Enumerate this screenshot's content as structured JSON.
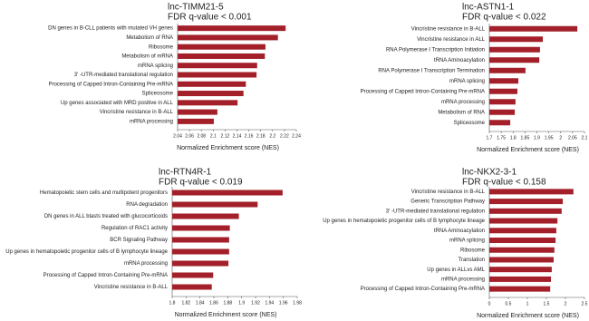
{
  "chart_data": [
    {
      "type": "bar",
      "orientation": "horizontal",
      "title": "lnc-TIMM21-5",
      "subtitle": "FDR q-value < 0.001",
      "xlabel": "Normalized Enrichment score (NES)",
      "color": "#a3202a",
      "categories": [
        "DN genes in B-CLL patients with mutated VH genes",
        "Metabolism of RNA",
        "Ribosome",
        "Metabolism of mRNA",
        "mRNA splicing",
        "3' -UTR-mediated translational regulation",
        "Processing of Capped Intron-Containing Pre-mRNA",
        "Spliceosome",
        "Up genes associated with MRD positive in ALL",
        "Vincristine resistance in B-ALL",
        "mRNA processing"
      ],
      "category_colors": [
        "#222222",
        "#222222",
        "#222222",
        "#222222",
        "#222222",
        "#222222",
        "#a3202a",
        "#222222",
        "#222222",
        "#a3202a",
        "#a3202a"
      ],
      "values": [
        2.222,
        2.209,
        2.188,
        2.187,
        2.174,
        2.173,
        2.155,
        2.151,
        2.141,
        2.107,
        2.101
      ],
      "xlim": [
        2.04,
        2.24
      ],
      "xticks": [
        2.04,
        2.06,
        2.08,
        2.1,
        2.12,
        2.14,
        2.16,
        2.18,
        2.2,
        2.22,
        2.24
      ]
    },
    {
      "type": "bar",
      "orientation": "horizontal",
      "title": "lnc-ASTN1-1",
      "subtitle": "FDR q-value < 0.022",
      "xlabel": "Normalized Enrichment score (NES)",
      "color": "#a3202a",
      "categories": [
        "Vincristine resistance in B-ALL",
        "Vincristine resistance in ALL",
        "RNA Polymerase I Transcription Initiation",
        "tRNA Aminoacylation",
        "RNA Polymerase I Transcription Termination",
        "mRNA splicing",
        "Processing of Capped Intron-Containing Pre-mRNA",
        "mRNA processing",
        "Metabolism of RNA",
        "Spliceosome"
      ],
      "category_colors": [
        "#a3202a",
        "#222222",
        "#222222",
        "#222222",
        "#222222",
        "#222222",
        "#a3202a",
        "#a3202a",
        "#222222",
        "#222222"
      ],
      "values": [
        2.07,
        1.925,
        1.913,
        1.91,
        1.852,
        1.822,
        1.818,
        1.81,
        1.807,
        1.788
      ],
      "xlim": [
        1.7,
        2.1
      ],
      "xticks": [
        1.7,
        1.75,
        1.8,
        1.85,
        1.9,
        1.95,
        2,
        2.05,
        2.1
      ]
    },
    {
      "type": "bar",
      "orientation": "horizontal",
      "title": "lnc-RTN4R-1",
      "subtitle": "FDR q-value < 0.019",
      "xlabel": "Normalized Enrichment score (NES)",
      "color": "#a3202a",
      "categories": [
        "Hematopoietic stem cells  and multipotent progenitors",
        "RNA degradation",
        "DN genes in ALL  blasts treated with glucocorticoids",
        "Regulation of RAC1 activity",
        "BCR Signaling Pathway",
        "Up genes in hematopoietic progenitor cells of B lymphocyte lineage",
        "mRNA processing",
        "Processing of Capped Intron-Containing Pre-mRNA",
        "Vincristine resistance in B-ALL"
      ],
      "category_colors": [
        "#222222",
        "#222222",
        "#222222",
        "#222222",
        "#222222",
        "#222222",
        "#a3202a",
        "#a3202a",
        "#a3202a"
      ],
      "values": [
        1.959,
        1.923,
        1.896,
        1.883,
        1.882,
        1.882,
        1.881,
        1.859,
        1.857
      ],
      "xlim": [
        1.8,
        1.98
      ],
      "xticks": [
        1.8,
        1.82,
        1.84,
        1.86,
        1.88,
        1.9,
        1.92,
        1.94,
        1.96,
        1.98
      ]
    },
    {
      "type": "bar",
      "orientation": "horizontal",
      "title": "lnc-NKX2-3-1",
      "subtitle": "FDR q-value < 0.158",
      "xlabel": "Normalized Enrichment score (NES)",
      "color": "#a3202a",
      "categories": [
        "Vincristine resistance in B-ALL",
        "Generic Transcription Pathway",
        "3' -UTR-mediated translational regulation",
        "Up genes in hematopoietic progenitor cells of B lymphocyte lineage",
        "tRNA Aminoacylation",
        "mRNA splicing",
        "Ribosome",
        "Translation",
        "Up genes in ALLvs AML",
        "mRNA processing",
        "Processing of Capped Intron-Containing Pre-mRNA"
      ],
      "category_colors": [
        "#a3202a",
        "#222222",
        "#222222",
        "#222222",
        "#222222",
        "#222222",
        "#222222",
        "#222222",
        "#222222",
        "#a3202a",
        "#a3202a"
      ],
      "values": [
        2.21,
        1.93,
        1.9,
        1.79,
        1.76,
        1.74,
        1.71,
        1.69,
        1.64,
        1.62,
        1.6
      ],
      "xlim": [
        0,
        2.5
      ],
      "xticks": [
        0,
        0.5,
        1,
        1.5,
        2,
        2.5
      ]
    }
  ]
}
